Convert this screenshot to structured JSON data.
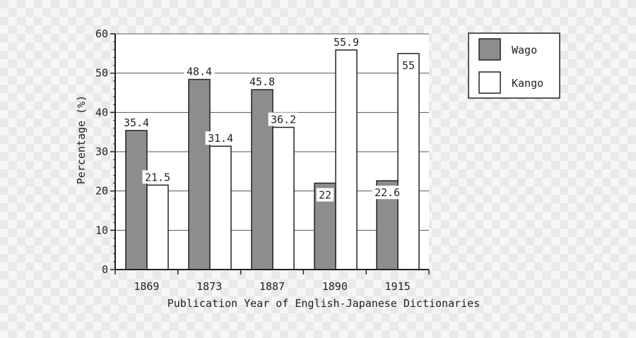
{
  "chart_data": {
    "type": "bar",
    "title": "",
    "xlabel": "Publication Year of English-Japanese Dictionaries",
    "ylabel": "Percentage (%)",
    "ylim": [
      0,
      60
    ],
    "yticks": [
      0,
      10,
      20,
      30,
      40,
      50,
      60
    ],
    "categories": [
      "1869",
      "1873",
      "1887",
      "1890",
      "1915"
    ],
    "series": [
      {
        "name": "Wago",
        "values": [
          35.4,
          48.4,
          45.8,
          22,
          22.6
        ],
        "labels": [
          "35.4",
          "48.4",
          "45.8",
          "22",
          "22.6"
        ],
        "color": "#8c8d8f"
      },
      {
        "name": "Kango",
        "values": [
          21.5,
          31.4,
          36.2,
          55.9,
          55
        ],
        "labels": [
          "21.5",
          "31.4",
          "36.2",
          "55.9",
          "55"
        ],
        "color": "#ffffff"
      }
    ],
    "grid": true,
    "legend": "right"
  }
}
